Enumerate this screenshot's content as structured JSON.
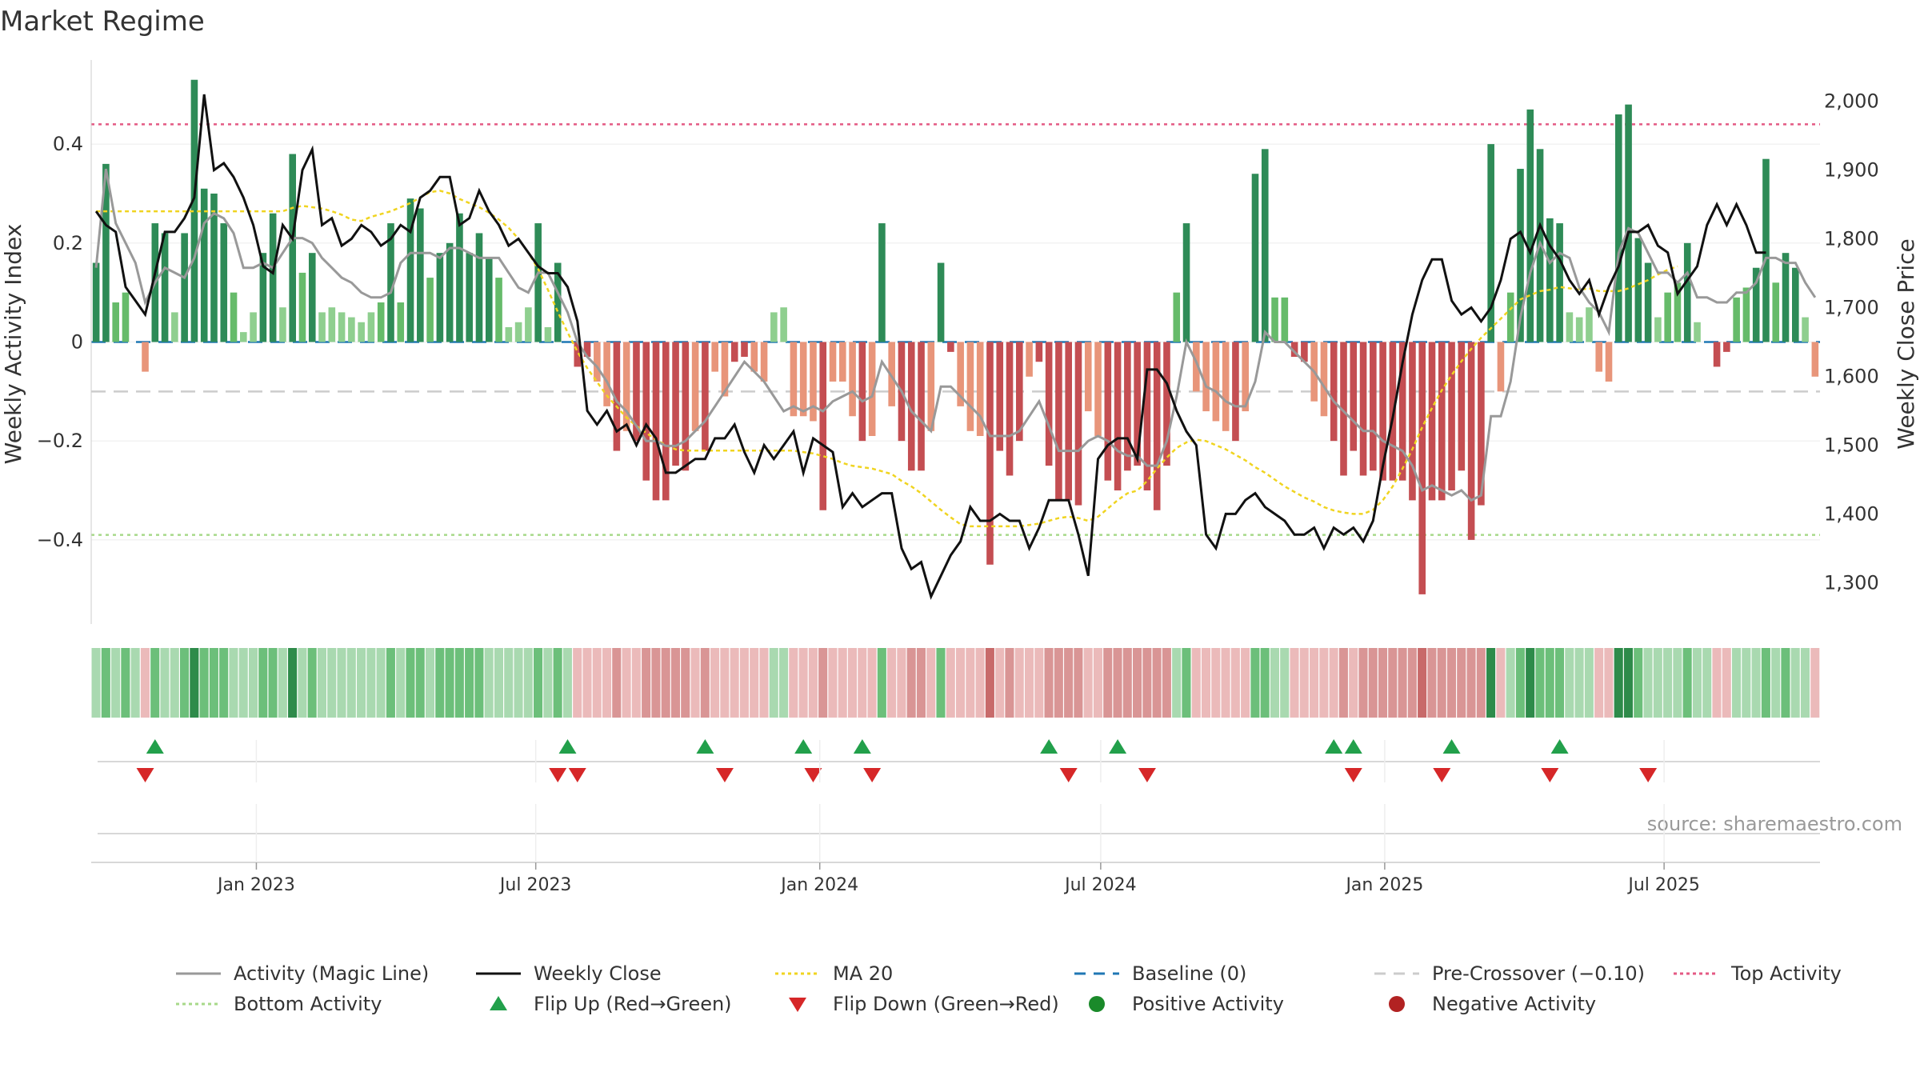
{
  "title": "Market Regime",
  "source": "source: sharemaestro.com",
  "colors": {
    "dark_green": "#2e8b57",
    "mid_green": "#66bb6a",
    "light_green": "#8fcf8f",
    "dark_red": "#c44e52",
    "light_red": "#e8957a",
    "activity_line": "#999999",
    "close_line": "#111111",
    "ma_line": "#f0d420",
    "baseline": "#1f77b4",
    "pre_crossover": "#cccccc",
    "top_activity": "#e45a84",
    "bottom_activity": "#a7d98a",
    "flip_up": "#22a04b",
    "flip_down": "#d62728",
    "positive_dot": "#1a8a2a",
    "negative_dot": "#b22222"
  },
  "chart_data": {
    "type": "bar",
    "title": "Market Regime",
    "left_axis": {
      "label": "Weekly Activity Index",
      "ticks": [
        0.4,
        0.2,
        0,
        -0.2,
        -0.4
      ],
      "tick_labels": [
        "0.4",
        "0.2",
        "0",
        "−0.2",
        "−0.4"
      ],
      "range": [
        -0.57,
        0.57
      ]
    },
    "right_axis": {
      "label": "Weekly Close Price",
      "ticks": [
        2000,
        1900,
        1800,
        1700,
        1600,
        1500,
        1400,
        1300
      ],
      "tick_labels": [
        "2,000",
        "1,900",
        "1,800",
        "1,700",
        "1,600",
        "1,500",
        "1,400",
        "1,300"
      ],
      "range": [
        1240,
        2060
      ]
    },
    "x_axis": {
      "start_date": "2022-09-16",
      "end_date": "2025-10-10",
      "ticks": [
        "Jan 2023",
        "Jul 2023",
        "Jan 2024",
        "Jul 2024",
        "Jan 2025",
        "Jul 2025"
      ],
      "tick_dates": [
        "2023-01-01",
        "2023-07-01",
        "2024-01-01",
        "2024-07-01",
        "2025-01-01",
        "2025-07-01"
      ]
    },
    "reference_lines": {
      "baseline": 0,
      "pre_crossover": -0.1,
      "top_activity": 0.44,
      "bottom_activity": -0.39
    },
    "activity_bars": [
      0.16,
      0.36,
      0.08,
      0.1,
      0.0,
      -0.06,
      0.24,
      0.22,
      0.06,
      0.22,
      0.53,
      0.31,
      0.3,
      0.24,
      0.1,
      0.02,
      0.06,
      0.18,
      0.26,
      0.07,
      0.38,
      0.14,
      0.18,
      0.06,
      0.07,
      0.06,
      0.05,
      0.04,
      0.06,
      0.08,
      0.24,
      0.08,
      0.29,
      0.27,
      0.13,
      0.18,
      0.2,
      0.26,
      0.18,
      0.22,
      0.17,
      0.13,
      0.03,
      0.04,
      0.07,
      0.24,
      0.03,
      0.16,
      0.0,
      -0.05,
      -0.03,
      -0.08,
      -0.13,
      -0.22,
      -0.18,
      -0.2,
      -0.28,
      -0.32,
      -0.32,
      -0.25,
      -0.26,
      -0.18,
      -0.22,
      -0.06,
      -0.11,
      -0.04,
      -0.03,
      -0.06,
      -0.08,
      0.06,
      0.07,
      -0.15,
      -0.15,
      -0.16,
      -0.34,
      -0.08,
      -0.08,
      -0.15,
      -0.2,
      -0.19,
      0.24,
      -0.13,
      -0.2,
      -0.26,
      -0.26,
      -0.18,
      0.16,
      -0.02,
      -0.13,
      -0.18,
      -0.19,
      -0.45,
      -0.22,
      -0.27,
      -0.2,
      -0.07,
      -0.04,
      -0.25,
      -0.32,
      -0.32,
      -0.33,
      -0.14,
      -0.19,
      -0.28,
      -0.3,
      -0.26,
      -0.25,
      -0.3,
      -0.34,
      -0.25,
      0.1,
      0.24,
      -0.1,
      -0.14,
      -0.16,
      -0.18,
      -0.2,
      -0.14,
      0.34,
      0.39,
      0.09,
      0.09,
      -0.03,
      -0.04,
      -0.12,
      -0.15,
      -0.2,
      -0.27,
      -0.22,
      -0.27,
      -0.26,
      -0.28,
      -0.28,
      -0.28,
      -0.32,
      -0.51,
      -0.32,
      -0.32,
      -0.3,
      -0.26,
      -0.4,
      -0.33,
      0.4,
      -0.1,
      0.1,
      0.35,
      0.47,
      0.39,
      0.25,
      0.24,
      0.06,
      0.05,
      0.07,
      -0.06,
      -0.08,
      0.46,
      0.48,
      0.21,
      0.16,
      0.05,
      0.1,
      0.12,
      0.2,
      0.04,
      0.0,
      -0.05,
      -0.02,
      0.09,
      0.11,
      0.15,
      0.37,
      0.12,
      0.18,
      0.15,
      0.05,
      -0.07
    ],
    "activity_line": [
      0.15,
      0.35,
      0.24,
      0.2,
      0.16,
      0.08,
      0.12,
      0.15,
      0.14,
      0.13,
      0.17,
      0.24,
      0.26,
      0.25,
      0.22,
      0.15,
      0.15,
      0.16,
      0.15,
      0.18,
      0.21,
      0.21,
      0.2,
      0.17,
      0.15,
      0.13,
      0.12,
      0.1,
      0.09,
      0.09,
      0.1,
      0.16,
      0.18,
      0.18,
      0.18,
      0.17,
      0.19,
      0.19,
      0.18,
      0.17,
      0.17,
      0.17,
      0.14,
      0.11,
      0.1,
      0.14,
      0.14,
      0.1,
      0.06,
      0.0,
      -0.03,
      -0.05,
      -0.08,
      -0.12,
      -0.14,
      -0.17,
      -0.2,
      -0.2,
      -0.21,
      -0.21,
      -0.2,
      -0.18,
      -0.16,
      -0.13,
      -0.1,
      -0.07,
      -0.04,
      -0.06,
      -0.08,
      -0.11,
      -0.14,
      -0.13,
      -0.14,
      -0.13,
      -0.14,
      -0.12,
      -0.11,
      -0.1,
      -0.12,
      -0.11,
      -0.04,
      -0.07,
      -0.1,
      -0.14,
      -0.16,
      -0.18,
      -0.09,
      -0.09,
      -0.11,
      -0.13,
      -0.15,
      -0.19,
      -0.19,
      -0.19,
      -0.18,
      -0.15,
      -0.12,
      -0.17,
      -0.22,
      -0.22,
      -0.22,
      -0.2,
      -0.19,
      -0.2,
      -0.22,
      -0.23,
      -0.23,
      -0.25,
      -0.25,
      -0.2,
      -0.11,
      0.0,
      -0.04,
      -0.09,
      -0.1,
      -0.12,
      -0.13,
      -0.13,
      -0.08,
      0.02,
      0.0,
      0.0,
      -0.02,
      -0.04,
      -0.06,
      -0.09,
      -0.12,
      -0.14,
      -0.16,
      -0.18,
      -0.18,
      -0.2,
      -0.21,
      -0.22,
      -0.25,
      -0.3,
      -0.29,
      -0.3,
      -0.31,
      -0.3,
      -0.32,
      -0.31,
      -0.15,
      -0.15,
      -0.08,
      0.05,
      0.14,
      0.2,
      0.16,
      0.18,
      0.17,
      0.11,
      0.08,
      0.06,
      0.02,
      0.18,
      0.23,
      0.22,
      0.18,
      0.14,
      0.14,
      0.12,
      0.14,
      0.09,
      0.09,
      0.08,
      0.08,
      0.1,
      0.1,
      0.12,
      0.17,
      0.17,
      0.16,
      0.16,
      0.12,
      0.09
    ],
    "weekly_close": [
      1840,
      1820,
      1810,
      1730,
      1710,
      1690,
      1750,
      1810,
      1810,
      1830,
      1860,
      2010,
      1900,
      1910,
      1890,
      1860,
      1820,
      1760,
      1750,
      1820,
      1800,
      1900,
      1930,
      1820,
      1830,
      1790,
      1800,
      1820,
      1810,
      1790,
      1800,
      1820,
      1810,
      1860,
      1870,
      1890,
      1890,
      1820,
      1830,
      1870,
      1840,
      1820,
      1790,
      1800,
      1780,
      1760,
      1750,
      1750,
      1730,
      1680,
      1550,
      1530,
      1550,
      1520,
      1530,
      1500,
      1530,
      1510,
      1460,
      1460,
      1470,
      1480,
      1480,
      1510,
      1510,
      1530,
      1490,
      1460,
      1500,
      1480,
      1500,
      1520,
      1460,
      1510,
      1500,
      1490,
      1410,
      1430,
      1410,
      1420,
      1430,
      1430,
      1350,
      1320,
      1330,
      1280,
      1310,
      1340,
      1360,
      1410,
      1390,
      1390,
      1400,
      1390,
      1390,
      1350,
      1380,
      1420,
      1420,
      1420,
      1370,
      1310,
      1480,
      1500,
      1510,
      1510,
      1480,
      1610,
      1610,
      1590,
      1550,
      1520,
      1500,
      1370,
      1350,
      1400,
      1400,
      1420,
      1430,
      1410,
      1400,
      1390,
      1370,
      1370,
      1380,
      1350,
      1380,
      1370,
      1380,
      1360,
      1390,
      1470,
      1540,
      1620,
      1690,
      1740,
      1770,
      1770,
      1710,
      1690,
      1700,
      1680,
      1700,
      1740,
      1800,
      1810,
      1780,
      1820,
      1790,
      1770,
      1740,
      1720,
      1740,
      1690,
      1730,
      1760,
      1810,
      1810,
      1820,
      1790,
      1780,
      1720,
      1740,
      1760,
      1820,
      1850,
      1820,
      1850,
      1820,
      1780,
      1780
    ],
    "ma20": [
      1840,
      1840,
      1840,
      1840,
      1840,
      1840,
      1840,
      1840,
      1840,
      1840,
      1840,
      1840,
      1840,
      1840,
      1840,
      1840,
      1840,
      1840,
      1840,
      1840,
      1845,
      1848,
      1846,
      1844,
      1840,
      1835,
      1828,
      1826,
      1832,
      1836,
      1840,
      1846,
      1852,
      1860,
      1868,
      1870,
      1866,
      1858,
      1852,
      1846,
      1838,
      1828,
      1816,
      1800,
      1780,
      1756,
      1726,
      1694,
      1664,
      1636,
      1612,
      1592,
      1572,
      1556,
      1540,
      1528,
      1518,
      1508,
      1500,
      1494,
      1492,
      1492,
      1492,
      1492,
      1492,
      1492,
      1492,
      1492,
      1492,
      1492,
      1492,
      1492,
      1490,
      1488,
      1484,
      1480,
      1474,
      1470,
      1468,
      1466,
      1462,
      1458,
      1448,
      1440,
      1430,
      1418,
      1406,
      1395,
      1385,
      1382,
      1382,
      1382,
      1382,
      1382,
      1382,
      1384,
      1386,
      1390,
      1394,
      1396,
      1394,
      1390,
      1396,
      1408,
      1420,
      1430,
      1434,
      1448,
      1466,
      1482,
      1496,
      1504,
      1508,
      1506,
      1500,
      1494,
      1486,
      1478,
      1468,
      1460,
      1450,
      1440,
      1432,
      1424,
      1418,
      1410,
      1405,
      1402,
      1400,
      1400,
      1406,
      1420,
      1440,
      1466,
      1494,
      1526,
      1554,
      1580,
      1602,
      1622,
      1640,
      1656,
      1670,
      1684,
      1698,
      1712,
      1718,
      1724,
      1726,
      1730,
      1728,
      1726,
      1728,
      1724,
      1724,
      1724,
      1728,
      1734,
      1740,
      1748,
      1755,
      1760
    ],
    "regime_strip": [
      "lg",
      "mg",
      "lg",
      "mg",
      "lg",
      "lr",
      "mg",
      "lg",
      "lg",
      "mg",
      "dg",
      "mg",
      "mg",
      "mg",
      "lg",
      "lg",
      "lg",
      "mg",
      "mg",
      "lg",
      "dg",
      "lg",
      "mg",
      "lg",
      "lg",
      "lg",
      "lg",
      "lg",
      "lg",
      "lg",
      "mg",
      "lg",
      "mg",
      "mg",
      "lg",
      "mg",
      "mg",
      "mg",
      "mg",
      "mg",
      "lg",
      "lg",
      "lg",
      "lg",
      "lg",
      "mg",
      "lg",
      "mg",
      "lg",
      "lr",
      "lr",
      "lr",
      "lr",
      "mr",
      "lr",
      "lr",
      "mr",
      "mr",
      "mr",
      "mr",
      "mr",
      "lr",
      "mr",
      "lr",
      "lr",
      "lr",
      "lr",
      "lr",
      "lr",
      "lg",
      "lg",
      "lr",
      "lr",
      "lr",
      "mr",
      "lr",
      "lr",
      "lr",
      "lr",
      "lr",
      "mg",
      "lr",
      "lr",
      "mr",
      "mr",
      "lr",
      "mg",
      "lr",
      "lr",
      "lr",
      "lr",
      "dr",
      "lr",
      "mr",
      "lr",
      "lr",
      "lr",
      "mr",
      "mr",
      "mr",
      "mr",
      "lr",
      "lr",
      "mr",
      "mr",
      "mr",
      "mr",
      "mr",
      "mr",
      "mr",
      "lg",
      "mg",
      "lr",
      "lr",
      "lr",
      "lr",
      "lr",
      "lr",
      "mg",
      "mg",
      "lg",
      "lg",
      "lr",
      "lr",
      "lr",
      "lr",
      "lr",
      "mr",
      "lr",
      "mr",
      "mr",
      "mr",
      "mr",
      "mr",
      "mr",
      "dr",
      "mr",
      "mr",
      "mr",
      "mr",
      "mr",
      "mr",
      "dg",
      "lr",
      "lg",
      "mg",
      "dg",
      "mg",
      "mg",
      "mg",
      "lg",
      "lg",
      "lg",
      "lr",
      "lr",
      "dg",
      "dg",
      "mg",
      "lg",
      "lg",
      "lg",
      "lg",
      "mg",
      "lg",
      "lg",
      "lr",
      "lr",
      "lg",
      "lg",
      "lg",
      "mg",
      "lg",
      "mg",
      "lg",
      "lg",
      "lr"
    ],
    "flip_up_weeks": [
      6,
      48,
      62,
      72,
      78,
      97,
      104,
      126,
      128,
      138,
      149
    ],
    "flip_down_weeks": [
      5,
      47,
      49,
      64,
      73,
      79,
      99,
      107,
      128,
      137,
      148,
      158
    ],
    "legend": [
      {
        "label": "Activity (Magic Line)",
        "marker": "line-gray"
      },
      {
        "label": "Weekly Close",
        "marker": "line-black"
      },
      {
        "label": "MA 20",
        "marker": "line-dotted-yellow"
      },
      {
        "label": "Baseline (0)",
        "marker": "line-dashed-blue"
      },
      {
        "label": "Pre-Crossover (−0.10)",
        "marker": "line-dashed-gray"
      },
      {
        "label": "Top Activity",
        "marker": "line-dotted-pink"
      },
      {
        "label": "Bottom Activity",
        "marker": "line-dotted-green"
      },
      {
        "label": "Flip Up (Red→Green)",
        "marker": "triangle-up-green"
      },
      {
        "label": "Flip Down (Green→Red)",
        "marker": "triangle-down-red"
      },
      {
        "label": "Positive Activity",
        "marker": "dot-green"
      },
      {
        "label": "Negative Activity",
        "marker": "dot-red"
      }
    ]
  }
}
